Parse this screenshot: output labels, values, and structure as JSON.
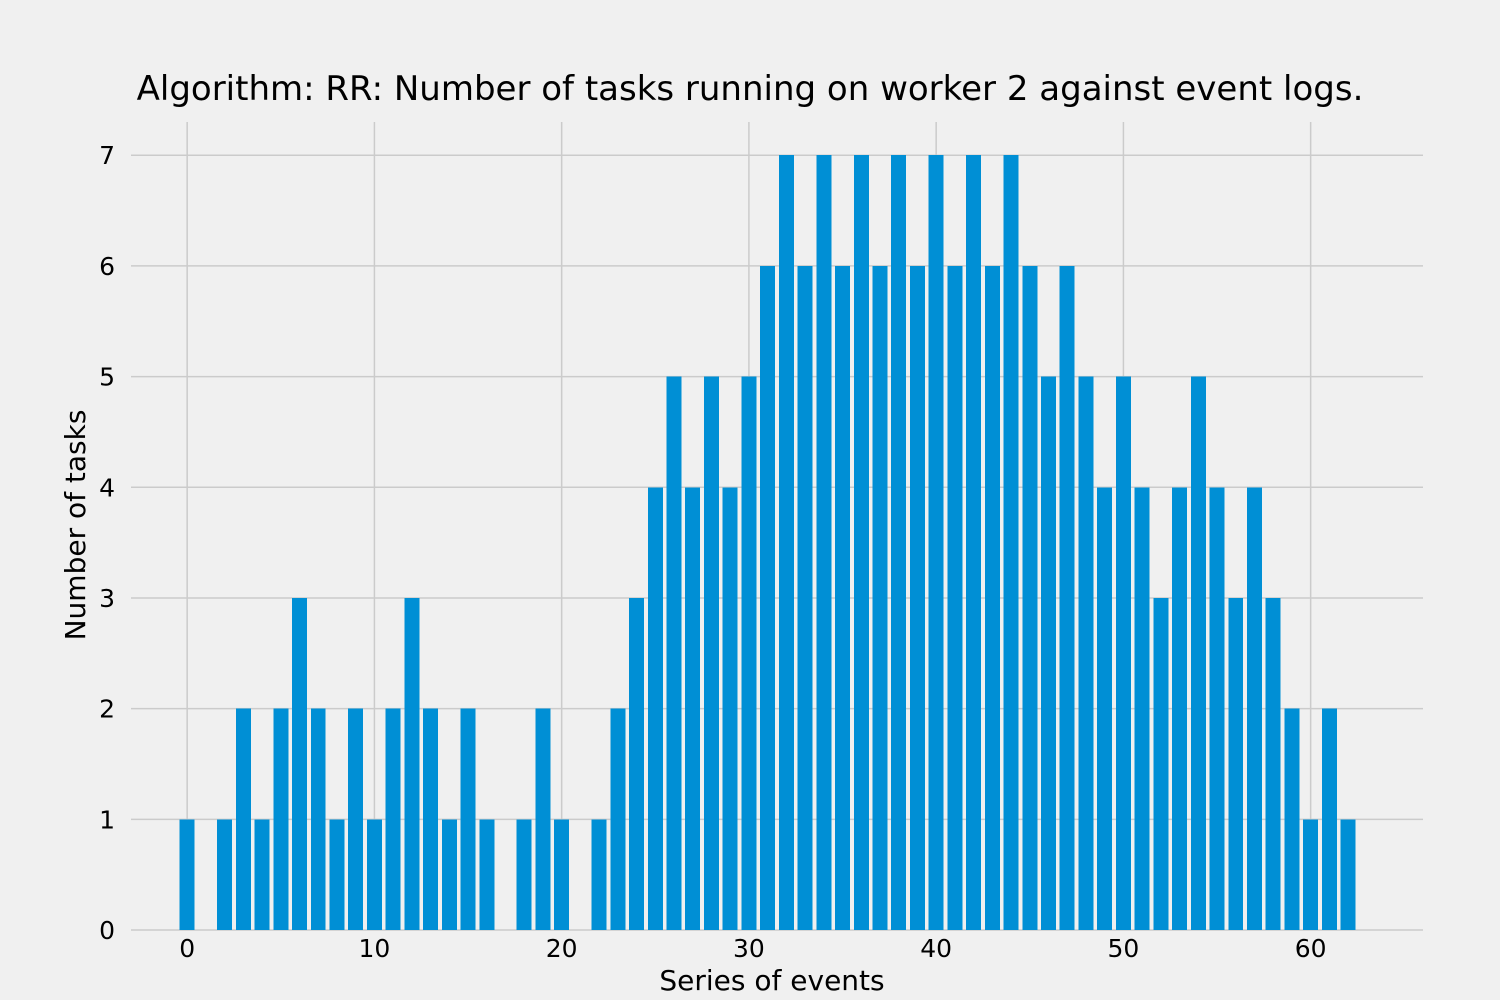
{
  "colors": {
    "background": "#f0f0f0",
    "bar": "#008fd5",
    "grid": "#cbcbcb"
  },
  "chart_data": {
    "type": "bar",
    "title": "Algorithm: RR: Number of tasks running on worker 2 against event logs.",
    "xlabel": "Series of events",
    "ylabel": "Number of tasks",
    "xlim": [
      -3,
      66
    ],
    "ylim": [
      0,
      7.3
    ],
    "xticks": [
      0,
      10,
      20,
      30,
      40,
      50,
      60
    ],
    "yticks": [
      0,
      1,
      2,
      3,
      4,
      5,
      6,
      7
    ],
    "grid": true,
    "x": [
      0,
      1,
      2,
      3,
      4,
      5,
      6,
      7,
      8,
      9,
      10,
      11,
      12,
      13,
      14,
      15,
      16,
      17,
      18,
      19,
      20,
      21,
      22,
      23,
      24,
      25,
      26,
      27,
      28,
      29,
      30,
      31,
      32,
      33,
      34,
      35,
      36,
      37,
      38,
      39,
      40,
      41,
      42,
      43,
      44,
      45,
      46,
      47,
      48,
      49,
      50,
      51,
      52,
      53,
      54,
      55,
      56,
      57,
      58,
      59,
      60,
      61,
      62
    ],
    "values": [
      1,
      0,
      1,
      2,
      1,
      2,
      3,
      2,
      1,
      2,
      1,
      2,
      3,
      2,
      1,
      2,
      1,
      0,
      1,
      2,
      1,
      0,
      1,
      2,
      3,
      4,
      5,
      4,
      5,
      4,
      5,
      6,
      7,
      6,
      7,
      6,
      7,
      6,
      7,
      6,
      7,
      6,
      7,
      6,
      7,
      6,
      5,
      6,
      5,
      4,
      5,
      4,
      3,
      4,
      5,
      4,
      3,
      4,
      3,
      2,
      1,
      2,
      1
    ]
  }
}
